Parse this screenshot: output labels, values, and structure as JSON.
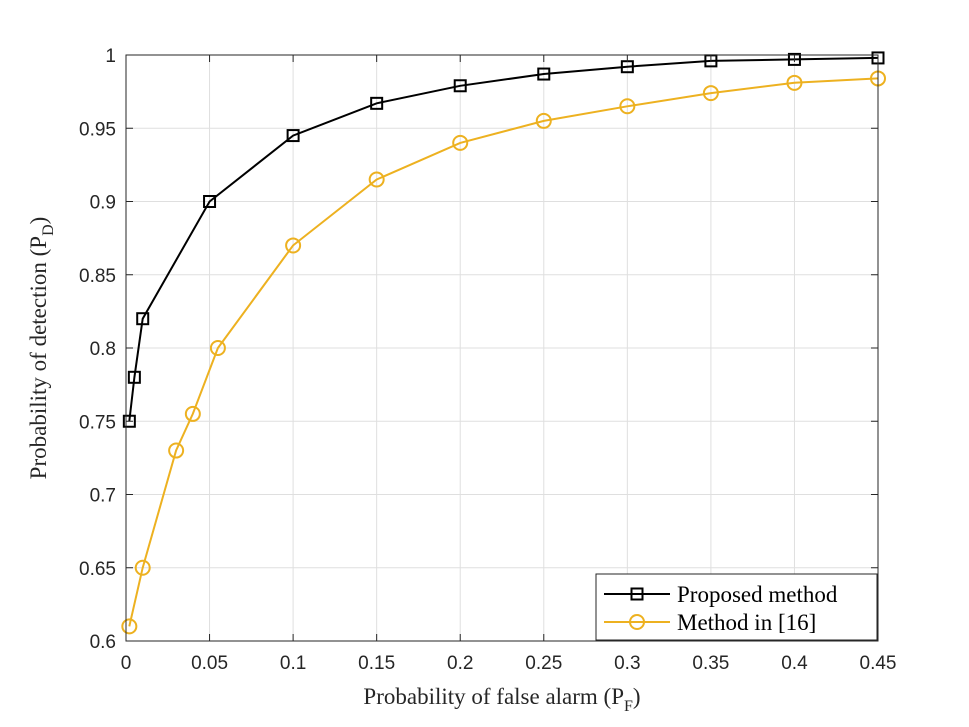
{
  "chart_data": {
    "type": "line",
    "title": "",
    "xlabel": {
      "text": "Probability of false alarm (P",
      "sub": "F",
      "close": ")"
    },
    "ylabel": {
      "text": "Probability of detection (P",
      "sub": "D",
      "close": ")"
    },
    "xlim": [
      0,
      0.45
    ],
    "ylim": [
      0.6,
      1.0
    ],
    "xticks": [
      0,
      0.05,
      0.1,
      0.15,
      0.2,
      0.25,
      0.3,
      0.35,
      0.4,
      0.45
    ],
    "xtick_labels": [
      "0",
      "0.05",
      "0.1",
      "0.15",
      "0.2",
      "0.25",
      "0.3",
      "0.35",
      "0.4",
      "0.45"
    ],
    "yticks": [
      0.6,
      0.65,
      0.7,
      0.75,
      0.8,
      0.85,
      0.9,
      0.95,
      1.0
    ],
    "ytick_labels": [
      "0.6",
      "0.65",
      "0.7",
      "0.75",
      "0.8",
      "0.85",
      "0.9",
      "0.95",
      "1"
    ],
    "grid": true,
    "legend_position": "bottom-right",
    "series": [
      {
        "name": "Proposed method",
        "color": "#000000",
        "marker": "square",
        "x": [
          0.002,
          0.005,
          0.01,
          0.05,
          0.1,
          0.15,
          0.2,
          0.25,
          0.3,
          0.35,
          0.4,
          0.45
        ],
        "y": [
          0.75,
          0.78,
          0.82,
          0.9,
          0.945,
          0.967,
          0.979,
          0.987,
          0.992,
          0.996,
          0.997,
          0.998
        ]
      },
      {
        "name": "Method in [16]",
        "color": "#EDB120",
        "marker": "circle",
        "x": [
          0.002,
          0.01,
          0.03,
          0.04,
          0.055,
          0.1,
          0.15,
          0.2,
          0.25,
          0.3,
          0.35,
          0.4,
          0.45
        ],
        "y": [
          0.61,
          0.65,
          0.73,
          0.755,
          0.8,
          0.87,
          0.915,
          0.94,
          0.955,
          0.965,
          0.974,
          0.981,
          0.984
        ]
      }
    ]
  }
}
